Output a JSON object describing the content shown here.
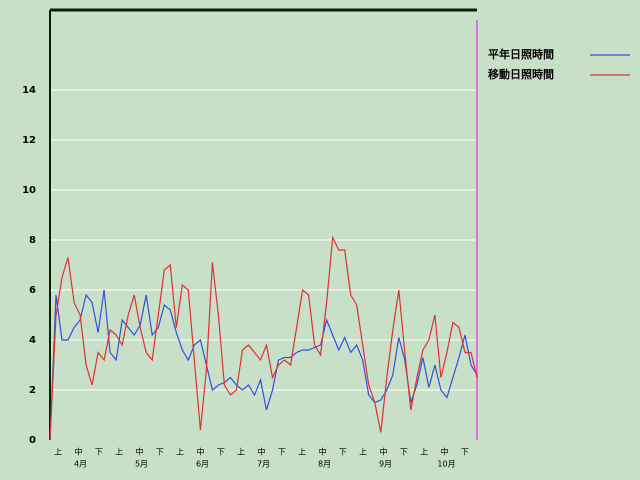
{
  "chart_data": {
    "type": "line",
    "dekad_labels": [
      "上",
      "中",
      "下",
      "上",
      "中",
      "下",
      "上",
      "中",
      "下",
      "上",
      "中",
      "下",
      "上",
      "中",
      "下",
      "上",
      "中",
      "下",
      "上",
      "中",
      "下"
    ],
    "months": [
      "4月",
      "5月",
      "6月",
      "7月",
      "8月",
      "9月",
      "10月"
    ],
    "series": [
      {
        "name": "平年日照時間",
        "color": "#3050e0",
        "values": [
          0,
          5.8,
          4,
          4,
          4.5,
          4.8,
          5.8,
          5.5,
          4.3,
          6,
          3.5,
          3.2,
          4.8,
          4.5,
          4.2,
          4.6,
          5.8,
          4.2,
          4.5,
          5.4,
          5.2,
          4.3,
          3.6,
          3.2,
          3.8,
          4,
          3,
          2,
          2.2,
          2.3,
          2.5,
          2.2,
          2,
          2.2,
          1.8,
          2.4,
          1.2,
          2,
          3.2,
          3.3,
          3.3,
          3.5,
          3.6,
          3.6,
          3.7,
          3.8,
          4.8,
          4.2,
          3.6,
          4.1,
          3.5,
          3.8,
          3.2,
          1.8,
          1.5,
          1.6,
          2,
          2.6,
          4.1,
          3.2,
          1.5,
          2.2,
          3.3,
          2.1,
          3,
          2,
          1.7,
          2.5,
          3.3,
          4.2,
          3,
          2.6
        ]
      },
      {
        "name": "移動日照時間",
        "color": "#e03030",
        "values": [
          0,
          5,
          6.5,
          7.3,
          5.5,
          5,
          3,
          2.2,
          3.5,
          3.2,
          4.4,
          4.2,
          3.8,
          5,
          5.8,
          4.5,
          3.5,
          3.2,
          5,
          6.8,
          7,
          4.5,
          6.2,
          6,
          3.2,
          0.4,
          2.8,
          7.1,
          5,
          2.2,
          1.8,
          2,
          3.6,
          3.8,
          3.5,
          3.2,
          3.8,
          2.5,
          3,
          3.2,
          3,
          4.5,
          6,
          5.8,
          3.8,
          3.4,
          5.5,
          8.1,
          7.6,
          7.6,
          5.8,
          5.4,
          3.8,
          2.2,
          1.5,
          0.3,
          2.5,
          4.4,
          6,
          3.5,
          1.2,
          2.5,
          3.6,
          4,
          5,
          2.5,
          3.5,
          4.7,
          4.5,
          3.5,
          3.5,
          2.5
        ]
      }
    ],
    "ylim": [
      0,
      17.2
    ],
    "yticks": [
      0,
      2,
      4,
      6,
      8,
      10,
      12,
      14
    ],
    "grid": true
  }
}
